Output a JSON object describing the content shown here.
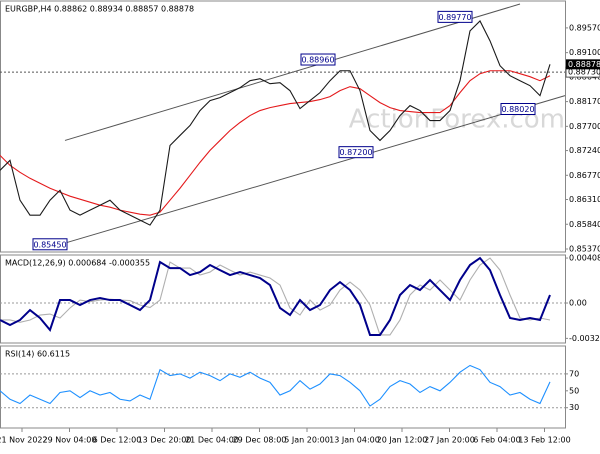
{
  "watermark": "ActionForex.com",
  "x_labels": [
    "21 Nov 2022",
    "29 Nov 04:00",
    "6 Dec 12:00",
    "13 Dec 20:00",
    "21 Dec 04:00",
    "29 Dec 08:00",
    "5 Jan 20:00",
    "13 Jan 04:00",
    "20 Jan 12:00",
    "27 Jan 20:00",
    "6 Feb 04:00",
    "13 Feb 12:00"
  ],
  "chart_data": [
    {
      "type": "line",
      "title": "EURGBP,H4  0.88862 0.88934 0.88857 0.88878",
      "ylim": [
        0.85313,
        0.90081
      ],
      "yticks": [
        {
          "value": 0.8957,
          "label": "0.89570"
        },
        {
          "value": 0.891,
          "label": "0.89100"
        },
        {
          "value": 0.8864,
          "label": "0.88640"
        },
        {
          "value": 0.8817,
          "label": "0.88170"
        },
        {
          "value": 0.877,
          "label": "0.87700"
        },
        {
          "value": 0.8724,
          "label": "0.87240"
        },
        {
          "value": 0.8677,
          "label": "0.86770"
        },
        {
          "value": 0.8631,
          "label": "0.86310"
        },
        {
          "value": 0.8584,
          "label": "0.85840"
        },
        {
          "value": 0.8537,
          "label": "0.85370"
        }
      ],
      "series": [
        {
          "name": "EURGBP",
          "color": "#1a1a1a",
          "values": [
            0.86865,
            0.87054,
            0.86297,
            0.86013,
            0.86013,
            0.86297,
            0.86486,
            0.86108,
            0.86013,
            0.86108,
            0.86202,
            0.86297,
            0.86108,
            0.86013,
            0.85918,
            0.85824,
            0.86108,
            0.87337,
            0.87527,
            0.87716,
            0.88,
            0.88189,
            0.88246,
            0.8834,
            0.88435,
            0.88567,
            0.88605,
            0.8851,
            0.88529,
            0.88378,
            0.88037,
            0.88189,
            0.8834,
            0.88567,
            0.88756,
            0.88756,
            0.88378,
            0.87621,
            0.87432,
            0.87621,
            0.87905,
            0.88094,
            0.88,
            0.8781,
            0.8781,
            0.88,
            0.88567,
            0.89513,
            0.89702,
            0.89324,
            0.88851,
            0.88662,
            0.88567,
            0.88473,
            0.88283,
            0.88878
          ]
        },
        {
          "name": "MA",
          "color": "#e41a1c",
          "values": [
            0.87148,
            0.86959,
            0.86827,
            0.86713,
            0.86618,
            0.86524,
            0.86448,
            0.86373,
            0.86316,
            0.86259,
            0.86202,
            0.86164,
            0.86108,
            0.8607,
            0.86032,
            0.86013,
            0.8607,
            0.86297,
            0.86524,
            0.8677,
            0.87016,
            0.87243,
            0.87432,
            0.87621,
            0.87773,
            0.87905,
            0.88,
            0.88056,
            0.88094,
            0.88132,
            0.88151,
            0.8817,
            0.88208,
            0.88265,
            0.88378,
            0.88454,
            0.88416,
            0.88283,
            0.88151,
            0.88056,
            0.88,
            0.87981,
            0.87962,
            0.87962,
            0.87962,
            0.88094,
            0.8834,
            0.88567,
            0.887,
            0.88756,
            0.88756,
            0.88756,
            0.887,
            0.88643,
            0.88567,
            0.88662
          ]
        }
      ],
      "channels": [
        {
          "x": [
            6.5,
            52
          ],
          "values": [
            0.87432,
            0.90024
          ]
        },
        {
          "x": [
            6.5,
            56.5
          ],
          "values": [
            0.85483,
            0.88283
          ]
        }
      ],
      "annotations": [
        {
          "label": "0.85450",
          "value": 0.8545,
          "x": 5
        },
        {
          "label": "0.88960",
          "value": 0.8896,
          "x": 31.8
        },
        {
          "label": "0.87200",
          "value": 0.872,
          "x": 35.6
        },
        {
          "label": "0.89770",
          "value": 0.8977,
          "x": 45.5
        },
        {
          "label": "0.88020",
          "value": 0.8802,
          "x": 51.8
        }
      ],
      "hline": {
        "value": 0.8873,
        "label": "0.88730"
      },
      "current_price": {
        "value": 0.88878,
        "label": "0.88878"
      }
    },
    {
      "type": "line",
      "title": "MACD(12,26,9) 0.000684 -0.000355",
      "ylim": [
        -0.00363,
        0.00436
      ],
      "yticks": [
        0.004083,
        {
          "value": 0,
          "label": "0.00"
        },
        -0.003209
      ],
      "zero_line": 0,
      "series": [
        {
          "name": "MACD",
          "color": "#00008b",
          "values": [
            -0.00154,
            -0.002,
            -0.00154,
            -0.00064,
            -0.00136,
            -0.00245,
            0.00027,
            0.00027,
            -0.00018,
            0.00027,
            0.00045,
            0.00027,
            0.00027,
            -0.00018,
            -0.00064,
            0.00027,
            0.00372,
            0.00317,
            0.00317,
            0.00254,
            0.00281,
            0.00345,
            0.00299,
            0.00254,
            0.00281,
            0.00254,
            0.00227,
            0.00163,
            -0.00045,
            -0.00109,
            0.00027,
            -0.00064,
            -0.00018,
            0.00118,
            0.0019,
            0.00118,
            -0.00018,
            -0.0029,
            -0.0029,
            -0.00154,
            0.00073,
            0.00163,
            0.00118,
            0.00209,
            0.00118,
            0.00027,
            0.00209,
            0.00345,
            0.00408,
            0.00299,
            0.00073,
            -0.00136,
            -0.00154,
            -0.00136,
            -0.00154,
            0.00073
          ]
        },
        {
          "name": "Signal",
          "color": "#b0b0b0",
          "values": [
            -0.00154,
            -0.00154,
            -0.00175,
            -0.00154,
            -0.00109,
            -0.001,
            -0.00136,
            -0.00045,
            0.00027,
            0.00012,
            0.00027,
            0.00035,
            0.00027,
            0.00022,
            -0.00018,
            -0.00041,
            0.00027,
            0.00372,
            0.00317,
            0.00317,
            0.00254,
            0.00281,
            0.00345,
            0.00299,
            0.00254,
            0.00281,
            0.00254,
            0.00227,
            0.00163,
            -0.00045,
            -0.00109,
            0.00027,
            -0.00064,
            -0.00018,
            0.00118,
            0.0019,
            0.00118,
            -0.00018,
            -0.0029,
            -0.0029,
            -0.00154,
            0.00073,
            0.00163,
            0.00118,
            0.00209,
            0.00118,
            0.00027,
            0.00209,
            0.00345,
            0.00408,
            0.00299,
            0.00073,
            -0.00136,
            -0.00154,
            -0.00136,
            -0.00154
          ]
        }
      ]
    },
    {
      "type": "line",
      "title": "RSI(14) 60.6115",
      "ylim": [
        6,
        103
      ],
      "yticks": [
        70,
        50,
        30
      ],
      "dotted": [
        70,
        30
      ],
      "series": [
        {
          "name": "RSI",
          "color": "#1e90ff",
          "values": [
            50,
            40,
            35,
            45,
            40,
            35,
            48,
            50,
            42,
            50,
            45,
            48,
            40,
            38,
            45,
            40,
            75,
            68,
            70,
            65,
            72,
            68,
            62,
            70,
            66,
            72,
            65,
            60,
            45,
            50,
            62,
            52,
            58,
            70,
            68,
            60,
            50,
            32,
            40,
            55,
            62,
            58,
            48,
            55,
            50,
            60,
            72,
            80,
            75,
            60,
            55,
            45,
            48,
            40,
            35,
            60.6115
          ]
        }
      ]
    }
  ]
}
